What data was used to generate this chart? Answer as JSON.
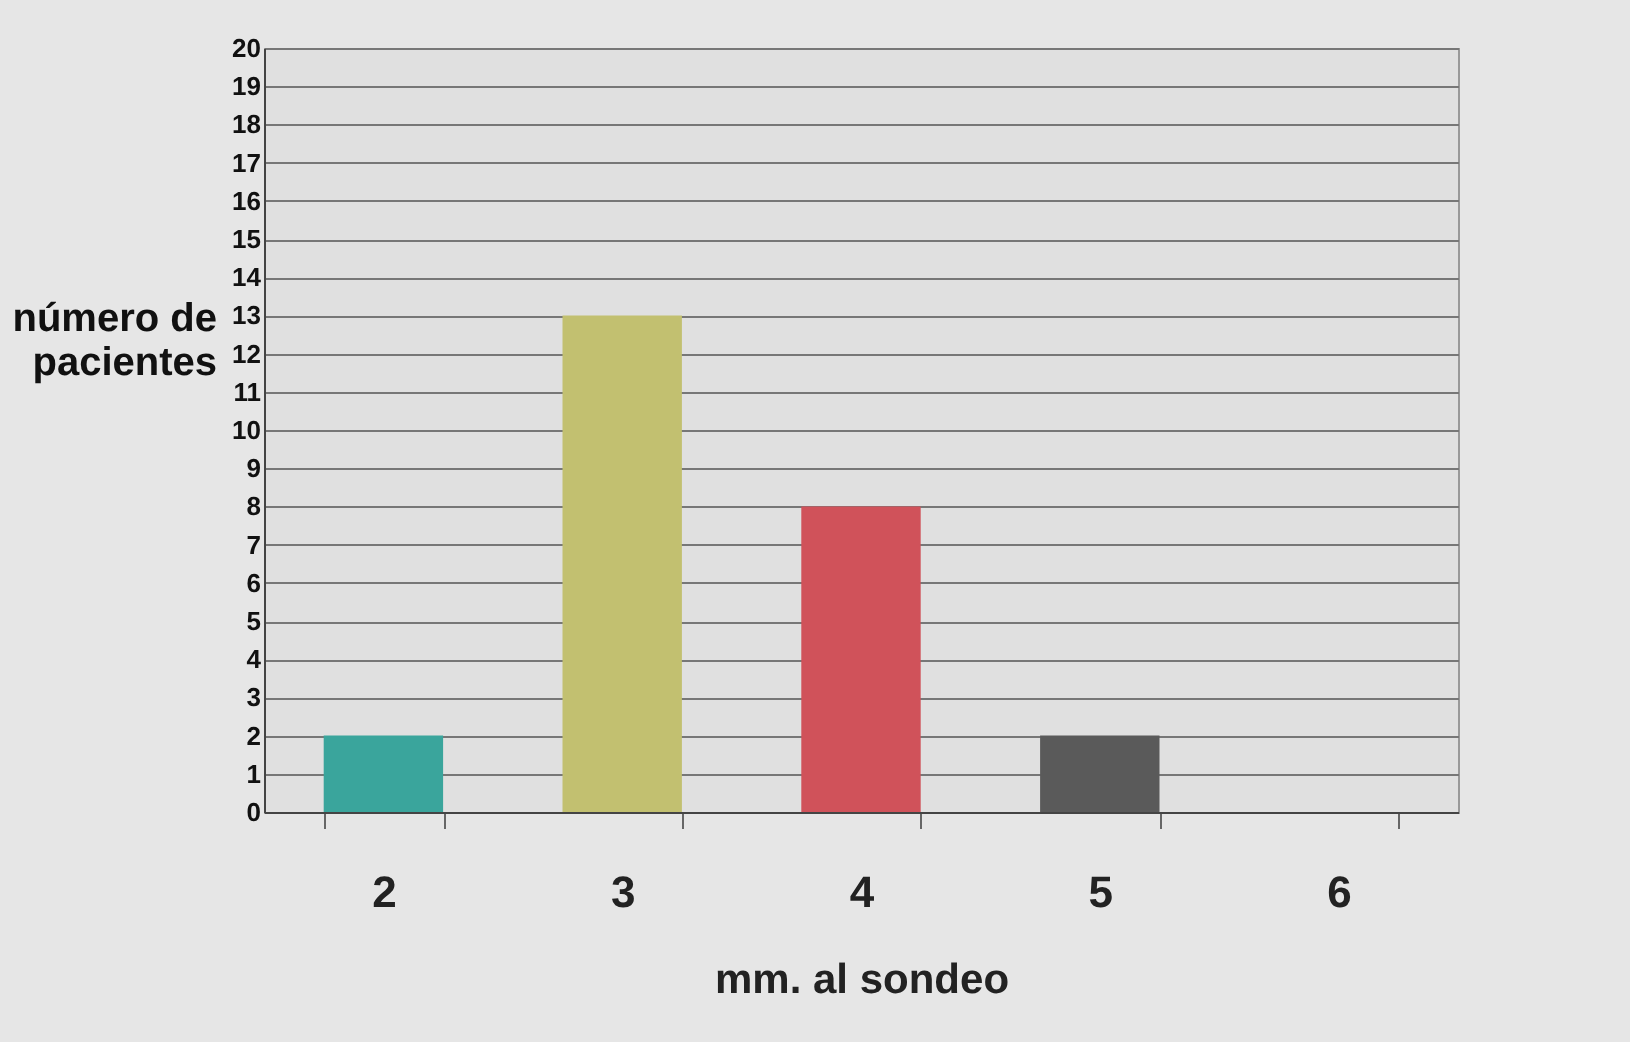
{
  "chart_data": {
    "type": "bar",
    "xlabel": "mm. al sondeo",
    "ylabel": "número de pacientes",
    "categories": [
      "2",
      "3",
      "4",
      "5",
      "6"
    ],
    "values": [
      2,
      13,
      8,
      2,
      0
    ],
    "colors": [
      "#3aa59c",
      "#c2c070",
      "#d0525a",
      "#5a5a5a",
      "#808080"
    ],
    "ylim": [
      0,
      20
    ],
    "yticks": [
      0,
      1,
      2,
      3,
      4,
      5,
      6,
      7,
      8,
      9,
      10,
      11,
      12,
      13,
      14,
      15,
      16,
      17,
      18,
      19,
      20
    ],
    "grid": "y",
    "legend": false
  }
}
